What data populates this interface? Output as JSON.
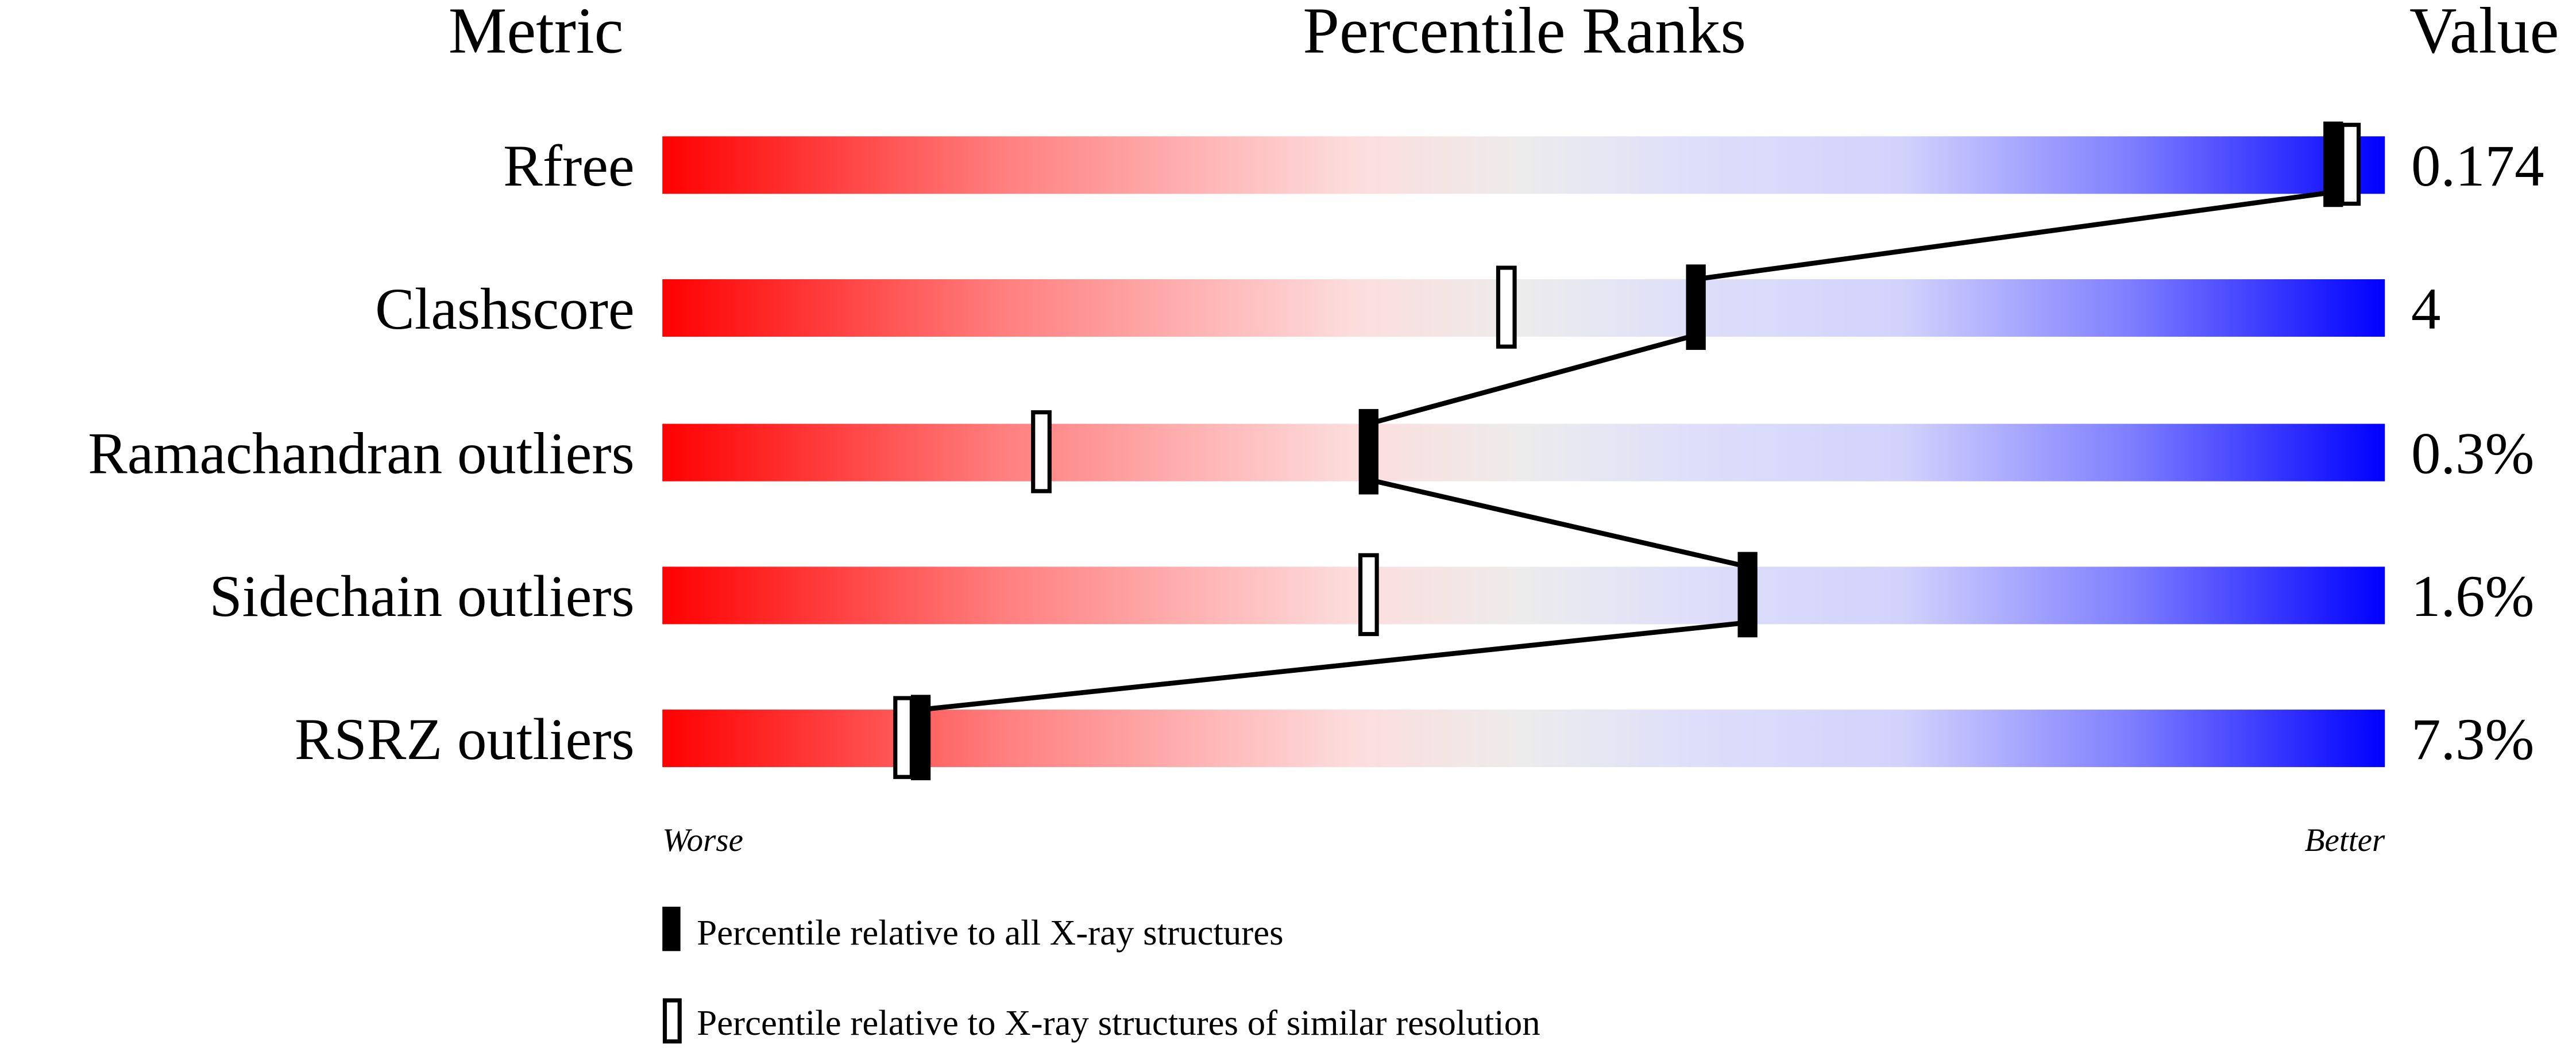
{
  "chart_data": {
    "type": "bar",
    "headers": {
      "metric": "Metric",
      "ranks": "Percentile Ranks",
      "value": "Value"
    },
    "metrics": [
      {
        "name": "Rfree",
        "value": "0.174",
        "percentile_all": 97,
        "percentile_similar": 98
      },
      {
        "name": "Clashscore",
        "value": "4",
        "percentile_all": 60,
        "percentile_similar": 49
      },
      {
        "name": "Ramachandran outliers",
        "value": "0.3%",
        "percentile_all": 41,
        "percentile_similar": 22
      },
      {
        "name": "Sidechain outliers",
        "value": "1.6%",
        "percentile_all": 63,
        "percentile_similar": 41
      },
      {
        "name": "RSRZ outliers",
        "value": "7.3%",
        "percentile_all": 15,
        "percentile_similar": 14
      }
    ],
    "xlim": [
      0,
      100
    ],
    "axis_left_label": "Worse",
    "axis_right_label": "Better",
    "legend": {
      "all": "Percentile relative to all X-ray structures",
      "similar": "Percentile relative to X-ray structures of similar resolution"
    },
    "colors": {
      "worse": "#ff0000",
      "middle": "#eeeeee",
      "better": "#0000ff"
    }
  }
}
